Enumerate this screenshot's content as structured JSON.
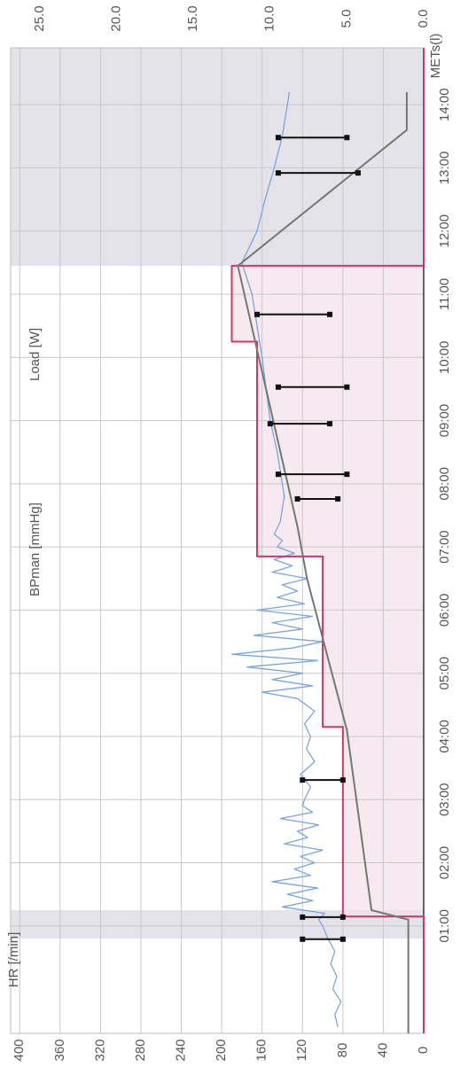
{
  "chart_data": {
    "type": "line",
    "xlim": [
      -0.7,
      14.9
    ],
    "xticks": [
      {
        "value": 1,
        "label": "01:00"
      },
      {
        "value": 2,
        "label": "02:00"
      },
      {
        "value": 3,
        "label": "03:00"
      },
      {
        "value": 4,
        "label": "04:00"
      },
      {
        "value": 5,
        "label": "05:00"
      },
      {
        "value": 6,
        "label": "06:00"
      },
      {
        "value": 7,
        "label": "07:00"
      },
      {
        "value": 8,
        "label": "08:00"
      },
      {
        "value": 9,
        "label": "09:00"
      },
      {
        "value": 10,
        "label": "10:00"
      },
      {
        "value": 11,
        "label": "11:00"
      },
      {
        "value": 12,
        "label": "12:00"
      },
      {
        "value": 13,
        "label": "13:00"
      },
      {
        "value": 14,
        "label": "14:00"
      }
    ],
    "ylim": [
      0,
      409
    ],
    "yticks": [
      0,
      40,
      80,
      120,
      160,
      200,
      240,
      280,
      320,
      360,
      400
    ],
    "y2lim": [
      0,
      26.9
    ],
    "y2ticks": [
      {
        "value": 0,
        "label": "0.0"
      },
      {
        "value": 5,
        "label": "5.0"
      },
      {
        "value": 10,
        "label": "10.0"
      },
      {
        "value": 15,
        "label": "15.0"
      },
      {
        "value": 20,
        "label": "20.0"
      },
      {
        "value": 25,
        "label": "25.0"
      }
    ],
    "grid": true,
    "bands": [
      [
        0.8,
        1.25
      ],
      [
        11.45,
        14.9
      ]
    ],
    "series": [
      {
        "name": "HR [/min]",
        "color": "#7aa6e0",
        "x": [
          -0.6,
          -0.4,
          -0.2,
          0,
          0.2,
          0.4,
          0.6,
          0.8,
          1.0,
          1.1,
          1.2,
          1.3,
          1.4,
          1.5,
          1.6,
          1.7,
          1.8,
          1.9,
          2.0,
          2.1,
          2.2,
          2.3,
          2.4,
          2.5,
          2.6,
          2.7,
          2.8,
          2.9,
          3.0,
          3.2,
          3.4,
          3.6,
          3.8,
          4.0,
          4.2,
          4.4,
          4.6,
          4.7,
          4.8,
          4.9,
          5.0,
          5.1,
          5.2,
          5.3,
          5.4,
          5.5,
          5.6,
          5.7,
          5.8,
          5.9,
          6.0,
          6.1,
          6.2,
          6.3,
          6.4,
          6.5,
          6.6,
          6.7,
          6.8,
          6.9,
          7.0,
          7.1,
          7.2,
          7.4,
          7.6,
          7.8,
          8.0,
          8.5,
          9.0,
          9.5,
          10.0,
          10.5,
          11.0,
          11.5,
          12.0,
          12.5,
          13.0,
          13.5,
          14.0,
          14.2
        ],
        "values": [
          85,
          88,
          82,
          90,
          86,
          92,
          88,
          95,
          100,
          104,
          98,
          140,
          110,
          135,
          105,
          150,
          112,
          128,
          108,
          122,
          100,
          138,
          115,
          125,
          104,
          142,
          110,
          120,
          118,
          112,
          122,
          108,
          116,
          112,
          118,
          108,
          125,
          160,
          110,
          150,
          120,
          175,
          105,
          190,
          130,
          100,
          168,
          120,
          150,
          110,
          165,
          118,
          145,
          125,
          140,
          115,
          150,
          130,
          148,
          128,
          145,
          140,
          148,
          142,
          140,
          138,
          140,
          145,
          152,
          156,
          160,
          165,
          170,
          180,
          165,
          157,
          148,
          140,
          135,
          133
        ]
      },
      {
        "name": "Load [W]",
        "color": "#d6336c",
        "x": [
          -0.7,
          1.15,
          1.15,
          4.15,
          4.15,
          6.85,
          6.85,
          10.25,
          10.25,
          11.45,
          11.45,
          14.9
        ],
        "values": [
          0,
          0,
          80,
          80,
          100,
          100,
          165,
          165,
          190,
          190,
          0,
          0
        ]
      },
      {
        "name": "METs(l)",
        "color": "#707a70",
        "axis": "y2",
        "x": [
          -0.7,
          1.1,
          1.25,
          4.1,
          6.5,
          7.3,
          11.45,
          13.6,
          14.2
        ],
        "values": [
          1.0,
          1.0,
          3.4,
          5.0,
          7.6,
          8.2,
          12.1,
          1.1,
          1.1
        ]
      }
    ],
    "bp": {
      "name": "BPman [mmHg]",
      "color": "#111111",
      "x": [
        0.79,
        1.14,
        3.31,
        7.76,
        8.15,
        8.95,
        9.53,
        10.68,
        12.92,
        13.48
      ],
      "systolic": [
        120,
        120,
        120,
        125,
        144,
        152,
        144,
        165,
        144,
        144
      ],
      "diastolic": [
        80,
        80,
        80,
        85,
        76,
        93,
        76,
        93,
        65,
        76
      ]
    }
  }
}
